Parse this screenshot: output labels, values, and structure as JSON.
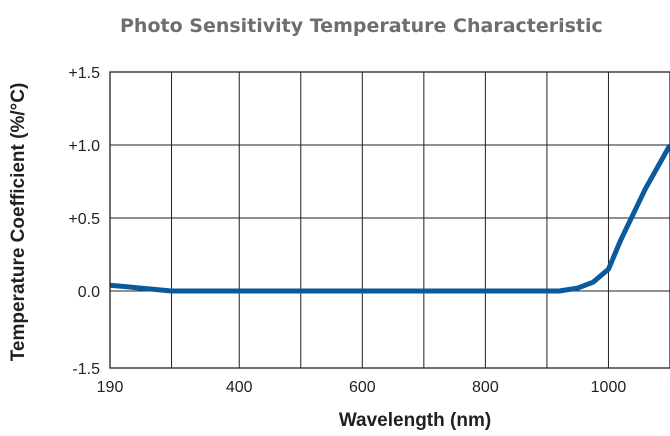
{
  "chart_data": {
    "type": "line",
    "title": "Photo Sensitivity Temperature Characteristic",
    "xlabel": "Wavelength (nm)",
    "ylabel": "Temperature Coefficient (%/°C)",
    "x_ticks": [
      {
        "value": 190,
        "label": "190"
      },
      {
        "value": 400,
        "label": "400"
      },
      {
        "value": 600,
        "label": "600"
      },
      {
        "value": 800,
        "label": "800"
      },
      {
        "value": 1000,
        "label": "1000"
      }
    ],
    "y_ticks": [
      {
        "value": -1.5,
        "label": "-1.5"
      },
      {
        "value": 0.0,
        "label": "0.0"
      },
      {
        "value": 0.5,
        "label": "+0.5"
      },
      {
        "value": 1.0,
        "label": "+1.0"
      },
      {
        "value": 1.5,
        "label": "+1.5"
      }
    ],
    "x_gridlines": [
      290,
      400,
      500,
      600,
      700,
      800,
      900,
      1000
    ],
    "grid": true,
    "series_color": "#0a5a9c",
    "series": [
      {
        "x": [
          190,
          240,
          290,
          400,
          600,
          800,
          920,
          950,
          975,
          1000,
          1020,
          1060,
          1100
        ],
        "y": [
          0.04,
          0.02,
          0.0,
          0.0,
          0.0,
          0.0,
          0.0,
          0.02,
          0.06,
          0.15,
          0.35,
          0.7,
          1.0
        ]
      }
    ]
  }
}
